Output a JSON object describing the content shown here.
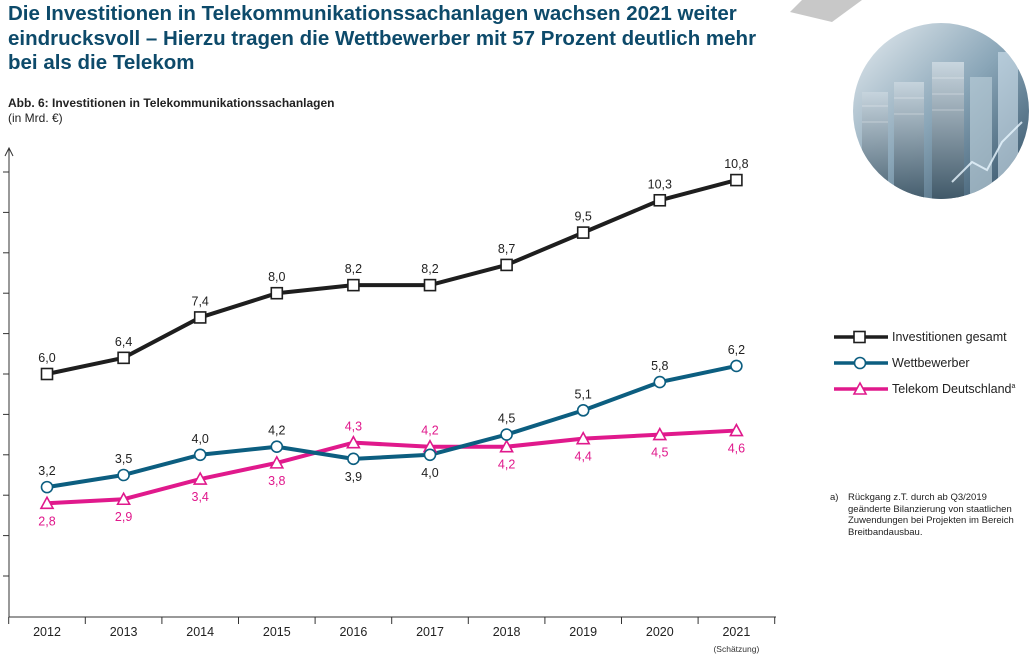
{
  "headline": "Die Investitionen in Telekommunikationssachanlagen wachsen 2021 weiter eindrucksvoll – Hierzu tragen die Wettbewerber mit 57 Prozent deutlich mehr bei als die Telekom",
  "figure_label": "Abb. 6: Investitionen in Telekommunikationssachanlagen",
  "unit_label": "(in Mrd. €)",
  "chart_data": {
    "type": "line",
    "title": "Abb. 6: Investitionen in Telekommunikationssachanlagen",
    "ylabel": "(in Mrd. €)",
    "xlabel": "",
    "categories": [
      "2012",
      "2013",
      "2014",
      "2015",
      "2016",
      "2017",
      "2018",
      "2019",
      "2020",
      "2021"
    ],
    "x_note": {
      "category": "2021",
      "text": "(Schätzung)"
    },
    "ylim": [
      1.0,
      11.0
    ],
    "grid": false,
    "legend_position": "right",
    "series": [
      {
        "name": "Investitionen gesamt",
        "marker": "square",
        "color": "#1e1e1e",
        "values": [
          6.0,
          6.4,
          7.4,
          8.0,
          8.2,
          8.2,
          8.7,
          9.5,
          10.3,
          10.8
        ],
        "labels": [
          "6,0",
          "6,4",
          "7,4",
          "8,0",
          "8,2",
          "8,2",
          "8,7",
          "9,5",
          "10,3",
          "10,8"
        ],
        "label_color": "#222222"
      },
      {
        "name": "Wettbewerber",
        "marker": "circle",
        "color": "#0c5e80",
        "values": [
          3.2,
          3.5,
          4.0,
          4.2,
          3.9,
          4.0,
          4.5,
          5.1,
          5.8,
          6.2
        ],
        "labels": [
          "3,2",
          "3,5",
          "4,0",
          "4,2",
          "3,9",
          "4,0",
          "4,5",
          "5,1",
          "5,8",
          "6,2"
        ],
        "label_color": "#222222"
      },
      {
        "name": "Telekom Deutschland",
        "name_superscript": "a",
        "marker": "triangle",
        "color": "#e0198c",
        "values": [
          2.8,
          2.9,
          3.4,
          3.8,
          4.3,
          4.2,
          4.2,
          4.4,
          4.5,
          4.6
        ],
        "labels": [
          "2,8",
          "2,9",
          "3,4",
          "3,8",
          "4,3",
          "4,2",
          "4,2",
          "4,4",
          "4,5",
          "4,6"
        ],
        "label_color": "#e0198c"
      }
    ]
  },
  "footnote": {
    "marker": "a)",
    "text": "Rückgang z.T. durch ab Q3/2019 geänderte Bilanzierung von staatlichen Zuwendungen bei Projekten im Bereich Breitbandausbau."
  },
  "colors": {
    "headline": "#0d4a6a",
    "total": "#1e1e1e",
    "competitors": "#0c5e80",
    "telekom": "#e0198c",
    "deco": "#c8c8c8"
  }
}
